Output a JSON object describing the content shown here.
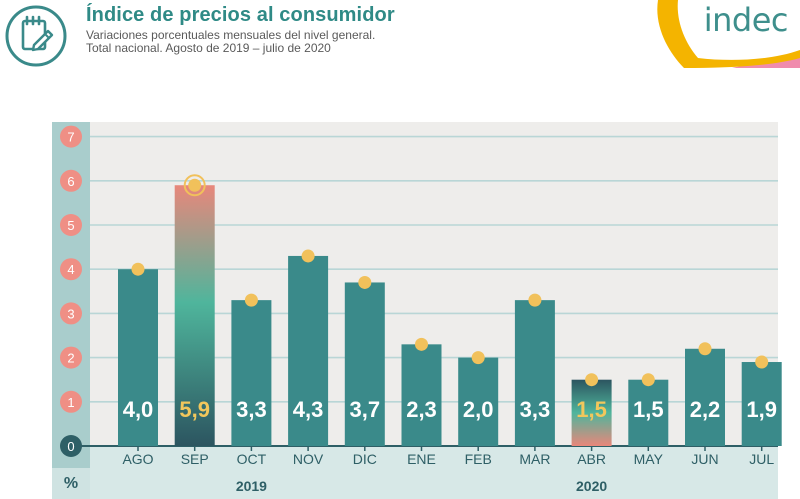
{
  "header": {
    "title": "Índice de precios al consumidor",
    "subtitle_line1": "Variaciones porcentuales mensuales del nivel general.",
    "subtitle_line2": "Total nacional. Agosto de 2019 – julio de 2020",
    "logo_text": "indec",
    "icon": "chart-edit-icon"
  },
  "colors": {
    "teal": "#3a8a8a",
    "highlight": "#e8877b",
    "dot": "#f1c15b",
    "gold_label": "#f2c75c",
    "axis_band": "#a9cdcc",
    "tick_circle": "#ef8f85",
    "zero_circle": "#2e5f66",
    "plot_bg": "#eeedeb",
    "logo_yellow": "#f4b400",
    "logo_pink": "#f08cad"
  },
  "chart_data": {
    "type": "bar",
    "categories": [
      "AGO",
      "SEP",
      "OCT",
      "NOV",
      "DIC",
      "ENE",
      "FEB",
      "MAR",
      "ABR",
      "MAY",
      "JUN",
      "JUL"
    ],
    "values": [
      4.0,
      5.9,
      3.3,
      4.3,
      3.7,
      2.3,
      2.0,
      3.3,
      1.5,
      1.5,
      2.2,
      1.9
    ],
    "value_labels": [
      "4,0",
      "5,9",
      "3,3",
      "4,3",
      "3,7",
      "2,3",
      "2,0",
      "3,3",
      "1,5",
      "1,5",
      "2,2",
      "1,9"
    ],
    "highlighted": [
      "SEP",
      "ABR"
    ],
    "y_ticks": [
      "0",
      "1",
      "2",
      "3",
      "4",
      "5",
      "6",
      "7"
    ],
    "ylim": [
      0,
      7
    ],
    "ylabel": "%",
    "year_labels": [
      {
        "label": "2019",
        "first": "AGO",
        "last": "DIC"
      },
      {
        "label": "2020",
        "first": "ENE",
        "last": "JUL"
      }
    ],
    "grid": true,
    "title": "Índice de precios al consumidor",
    "subtitle": "Variaciones porcentuales mensuales del nivel general. Total nacional. Agosto de 2019 – julio de 2020",
    "xlabel": ""
  }
}
